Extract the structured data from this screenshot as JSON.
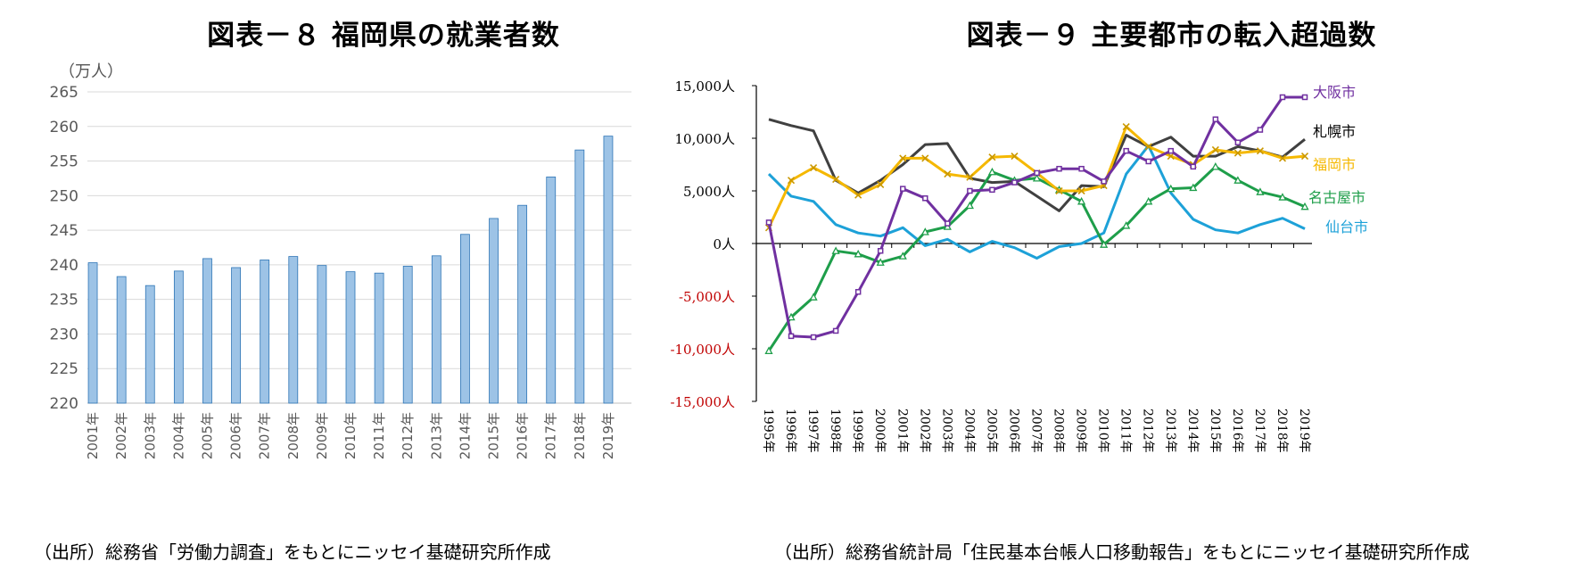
{
  "left": {
    "title": "図表－８ 福岡県の就業者数",
    "source": "（出所）総務省「労働力調査」をもとにニッセイ基礎研究所作成"
  },
  "right": {
    "title": "図表－９ 主要都市の転入超過数",
    "source": "（出所）総務省統計局「住民基本台帳人口移動報告」をもとにニッセイ基礎研究所作成"
  },
  "chart_data": [
    {
      "type": "bar",
      "title": "図表－８ 福岡県の就業者数",
      "unit_label": "（万人）",
      "categories": [
        "2001年",
        "2002年",
        "2003年",
        "2004年",
        "2005年",
        "2006年",
        "2007年",
        "2008年",
        "2009年",
        "2010年",
        "2011年",
        "2012年",
        "2013年",
        "2014年",
        "2015年",
        "2016年",
        "2017年",
        "2018年",
        "2019年"
      ],
      "values": [
        240.3,
        238.3,
        237.0,
        239.1,
        240.9,
        239.6,
        240.7,
        241.2,
        239.9,
        239.0,
        238.8,
        239.8,
        241.3,
        244.4,
        246.7,
        248.6,
        252.7,
        256.6,
        258.6
      ],
      "ylim": [
        220,
        265
      ],
      "yticks": [
        "220",
        "225",
        "230",
        "235",
        "240",
        "245",
        "250",
        "255",
        "260",
        "265"
      ],
      "grid": true,
      "bar_color": "#9DC3E6",
      "bar_edge_color": "#2E75B6"
    },
    {
      "type": "line",
      "title": "図表－９ 主要都市の転入超過数",
      "x": [
        "1995年",
        "1996年",
        "1997年",
        "1998年",
        "1999年",
        "2000年",
        "2001年",
        "2002年",
        "2003年",
        "2004年",
        "2005年",
        "2006年",
        "2007年",
        "2008年",
        "2009年",
        "2010年",
        "2011年",
        "2012年",
        "2013年",
        "2014年",
        "2015年",
        "2016年",
        "2017年",
        "2018年",
        "2019年"
      ],
      "ylim": [
        -15000,
        15000
      ],
      "yticks": [
        "15,000人",
        "10,000人",
        "5,000人",
        "0人",
        "-5,000人",
        "-10,000人",
        "-15,000人"
      ],
      "ytick_colors": [
        "#000000",
        "#000000",
        "#000000",
        "#000000",
        "#C00000",
        "#C00000",
        "#C00000"
      ],
      "grid": false,
      "legend_placement": "right (labels at line ends)",
      "series": [
        {
          "name": "大阪市",
          "color": "#7030A0",
          "marker": "square",
          "values": [
            2000,
            -8800,
            -8900,
            -8300,
            -4600,
            -700,
            5200,
            4300,
            1900,
            5000,
            5100,
            5800,
            6700,
            7100,
            7100,
            5900,
            8800,
            7800,
            8800,
            7300,
            11800,
            9600,
            10800,
            13900,
            13900
          ]
        },
        {
          "name": "札幌市",
          "color": "#404040",
          "marker": "none",
          "values": [
            11800,
            11200,
            10700,
            6000,
            4800,
            6000,
            7500,
            9400,
            9500,
            6200,
            5800,
            5900,
            4500,
            3100,
            5500,
            5400,
            10300,
            9200,
            10100,
            8300,
            8300,
            9200,
            8800,
            8200,
            9900
          ]
        },
        {
          "name": "福岡市",
          "color": "#F5B800",
          "marker": "x",
          "values": [
            1500,
            6000,
            7200,
            6100,
            4600,
            5600,
            8100,
            8100,
            6600,
            6300,
            8200,
            8300,
            6700,
            5000,
            5000,
            5500,
            11100,
            9200,
            8300,
            7500,
            8900,
            8600,
            8800,
            8100,
            8300
          ]
        },
        {
          "name": "名古屋市",
          "color": "#1E9E4A",
          "marker": "triangle",
          "values": [
            -10200,
            -7000,
            -5100,
            -700,
            -1000,
            -1800,
            -1200,
            1100,
            1600,
            3600,
            6800,
            6000,
            6200,
            5100,
            4000,
            -100,
            1700,
            4000,
            5200,
            5300,
            7300,
            6000,
            4900,
            4400,
            3500
          ]
        },
        {
          "name": "仙台市",
          "color": "#1DA1D8",
          "marker": "none",
          "values": [
            6600,
            4500,
            4000,
            1800,
            1000,
            700,
            1500,
            -200,
            400,
            -800,
            200,
            -400,
            -1400,
            -300,
            0,
            1000,
            6600,
            9300,
            4800,
            2300,
            1300,
            1000,
            1800,
            2400,
            1400
          ]
        }
      ]
    }
  ]
}
